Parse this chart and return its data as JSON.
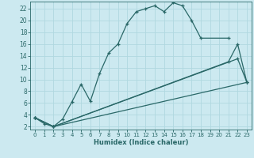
{
  "xlabel": "Humidex (Indice chaleur)",
  "bg_color": "#cce9f0",
  "line_color": "#2a6868",
  "grid_color": "#b0d8e0",
  "xlim": [
    -0.5,
    23.5
  ],
  "ylim": [
    1.5,
    23.2
  ],
  "xticks": [
    0,
    1,
    2,
    3,
    4,
    5,
    6,
    7,
    8,
    9,
    10,
    11,
    12,
    13,
    14,
    15,
    16,
    17,
    18,
    19,
    20,
    21,
    22,
    23
  ],
  "yticks": [
    2,
    4,
    6,
    8,
    10,
    12,
    14,
    16,
    18,
    20,
    22
  ],
  "main_x": [
    0,
    1,
    2,
    3,
    4,
    5,
    6,
    7,
    8,
    9,
    10,
    11,
    12,
    13,
    14,
    15,
    16,
    17,
    18,
    21
  ],
  "main_y": [
    3.5,
    2.5,
    2.0,
    3.3,
    6.2,
    9.2,
    6.3,
    11.0,
    14.5,
    16.0,
    19.5,
    21.5,
    22.0,
    22.5,
    21.5,
    23.0,
    22.5,
    20.0,
    17.0,
    17.0
  ],
  "line2_x": [
    0,
    2,
    23
  ],
  "line2_y": [
    3.5,
    2.0,
    9.5
  ],
  "line3_x": [
    0,
    2,
    21,
    22,
    23
  ],
  "line3_y": [
    3.5,
    2.0,
    13.0,
    16.0,
    9.5
  ],
  "line4_x": [
    0,
    2,
    22,
    23
  ],
  "line4_y": [
    3.5,
    2.0,
    13.5,
    9.5
  ]
}
